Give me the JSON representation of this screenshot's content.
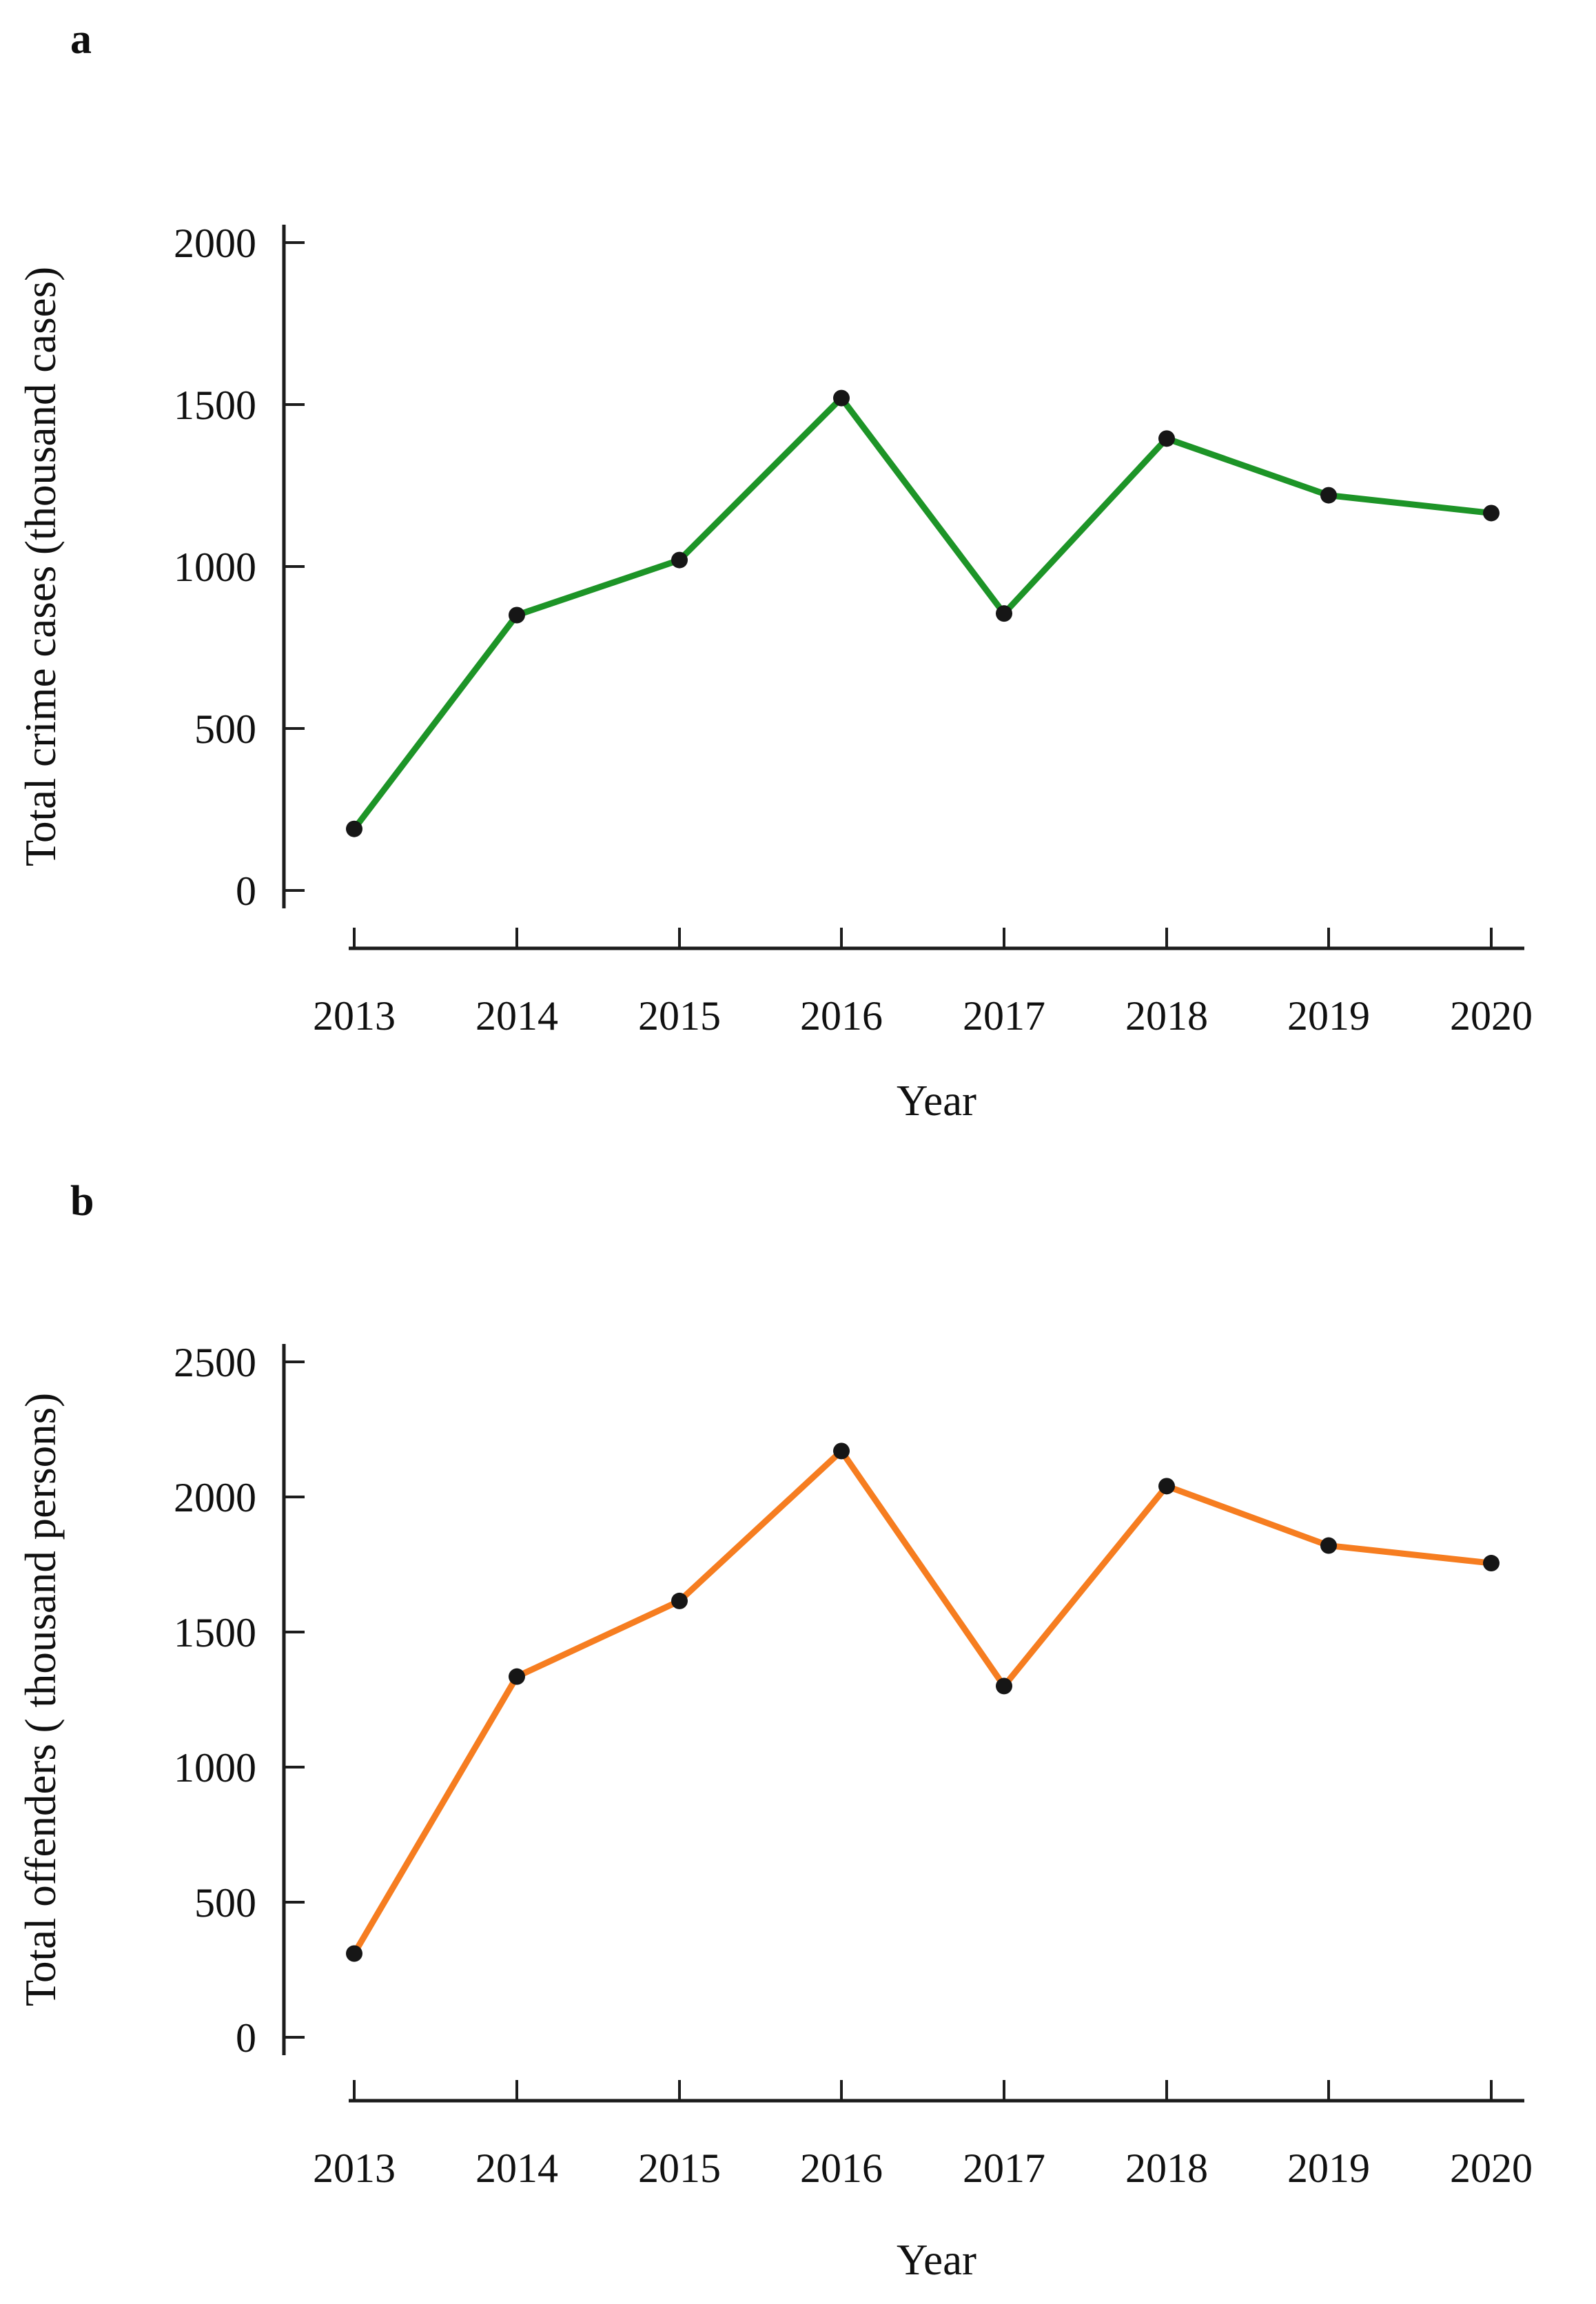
{
  "figure": {
    "background": "#ffffff",
    "panel_a_label": "a",
    "panel_b_label": "b"
  },
  "chart_data": [
    {
      "type": "line",
      "panel_label": "a",
      "title": "",
      "xlabel": "Year",
      "ylabel": "Total crime cases (thousand cases)",
      "x": [
        2013,
        2014,
        2015,
        2016,
        2017,
        2018,
        2019,
        2020
      ],
      "series": [
        {
          "name": "Total crime cases",
          "values": [
            190,
            850,
            1020,
            1520,
            855,
            1395,
            1220,
            1165
          ]
        }
      ],
      "ylim": [
        0,
        2000
      ],
      "yticks": [
        0,
        500,
        1000,
        1500,
        2000
      ],
      "line_color": "#1d9427",
      "marker_color": "#161616",
      "axis_color": "#1c1c1c",
      "grid": false,
      "legend": "none"
    },
    {
      "type": "line",
      "panel_label": "b",
      "title": "",
      "xlabel": "Year",
      "ylabel": "Total offenders ( thousand persons)",
      "x": [
        2013,
        2014,
        2015,
        2016,
        2017,
        2018,
        2019,
        2020
      ],
      "series": [
        {
          "name": "Total offenders",
          "values": [
            310,
            1335,
            1615,
            2170,
            1300,
            2040,
            1820,
            1755
          ]
        }
      ],
      "ylim": [
        0,
        2500
      ],
      "yticks": [
        0,
        500,
        1000,
        1500,
        2000,
        2500
      ],
      "line_color": "#f67d20",
      "marker_color": "#161616",
      "axis_color": "#1c1c1c",
      "grid": false,
      "legend": "none"
    }
  ]
}
